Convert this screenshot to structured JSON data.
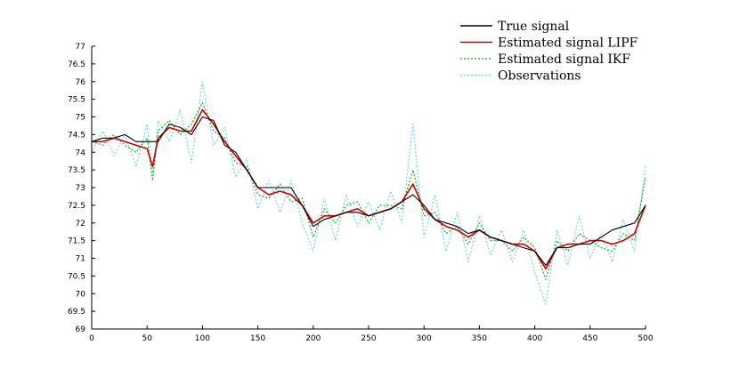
{
  "chart_data": {
    "type": "line",
    "xlim": [
      0,
      500
    ],
    "ylim": [
      69,
      77
    ],
    "x_ticks": [
      "0",
      "50",
      "100",
      "150",
      "200",
      "250",
      "300",
      "350",
      "400",
      "450",
      "500"
    ],
    "y_ticks": [
      "69",
      "69.5",
      "70",
      "70.5",
      "71",
      "71.5",
      "72",
      "72.5",
      "73",
      "73.5",
      "74",
      "74.5",
      "75",
      "75.5",
      "76",
      "76.5",
      "77"
    ],
    "grid": false,
    "legend_position": "top-right",
    "series": [
      {
        "name": "True signal",
        "color": "#000000",
        "style": "solid",
        "x": [
          0,
          10,
          20,
          30,
          40,
          50,
          55,
          60,
          70,
          80,
          90,
          100,
          110,
          120,
          130,
          140,
          150,
          160,
          170,
          180,
          190,
          200,
          210,
          220,
          230,
          240,
          250,
          260,
          270,
          280,
          290,
          300,
          310,
          320,
          330,
          340,
          350,
          360,
          370,
          380,
          390,
          400,
          410,
          420,
          430,
          440,
          450,
          460,
          470,
          480,
          490,
          500
        ],
        "y": [
          74.3,
          74.4,
          74.4,
          74.5,
          74.3,
          74.3,
          74.3,
          74.3,
          74.8,
          74.7,
          74.5,
          75.0,
          74.9,
          74.2,
          74.0,
          73.5,
          73.0,
          73.0,
          73.0,
          73.0,
          72.5,
          71.9,
          72.1,
          72.2,
          72.3,
          72.3,
          72.2,
          72.3,
          72.4,
          72.6,
          72.8,
          72.5,
          72.1,
          72.0,
          71.9,
          71.7,
          71.8,
          71.6,
          71.5,
          71.4,
          71.3,
          71.2,
          70.8,
          71.3,
          71.3,
          71.4,
          71.4,
          71.6,
          71.8,
          71.9,
          72.0,
          72.5
        ]
      },
      {
        "name": "Estimated signal LIPF",
        "color": "#cc0000",
        "style": "solid",
        "x": [
          0,
          10,
          20,
          30,
          40,
          50,
          55,
          60,
          70,
          80,
          90,
          100,
          110,
          120,
          130,
          140,
          150,
          160,
          170,
          180,
          190,
          200,
          210,
          220,
          230,
          240,
          250,
          260,
          270,
          280,
          290,
          300,
          310,
          320,
          330,
          340,
          350,
          360,
          370,
          380,
          390,
          400,
          410,
          420,
          430,
          440,
          450,
          460,
          470,
          480,
          490,
          500
        ],
        "y": [
          74.3,
          74.3,
          74.4,
          74.3,
          74.2,
          74.1,
          73.6,
          74.4,
          74.7,
          74.6,
          74.6,
          75.2,
          74.8,
          74.3,
          73.9,
          73.5,
          73.0,
          72.8,
          72.9,
          72.8,
          72.5,
          72.0,
          72.2,
          72.2,
          72.3,
          72.4,
          72.2,
          72.3,
          72.4,
          72.6,
          73.1,
          72.4,
          72.1,
          71.9,
          71.8,
          71.6,
          71.8,
          71.6,
          71.5,
          71.4,
          71.4,
          71.2,
          70.7,
          71.3,
          71.4,
          71.4,
          71.5,
          71.5,
          71.4,
          71.5,
          71.7,
          72.5
        ]
      },
      {
        "name": "Estimated signal IKF",
        "color": "#00aa00",
        "style": "dotted",
        "x": [
          0,
          10,
          20,
          30,
          40,
          50,
          55,
          60,
          70,
          80,
          90,
          100,
          110,
          120,
          130,
          140,
          150,
          160,
          170,
          180,
          190,
          200,
          210,
          220,
          230,
          240,
          250,
          260,
          270,
          280,
          290,
          300,
          310,
          320,
          330,
          340,
          350,
          360,
          370,
          380,
          390,
          400,
          410,
          420,
          430,
          440,
          450,
          460,
          470,
          480,
          490,
          500
        ],
        "y": [
          74.3,
          74.2,
          74.5,
          74.2,
          74.0,
          74.4,
          73.2,
          74.6,
          74.9,
          74.5,
          74.8,
          75.4,
          74.6,
          74.4,
          73.7,
          73.6,
          72.8,
          72.7,
          73.1,
          72.6,
          72.7,
          71.6,
          72.4,
          72.0,
          72.5,
          72.6,
          72.0,
          72.5,
          72.5,
          72.4,
          73.5,
          72.2,
          72.3,
          71.7,
          71.9,
          71.4,
          72.0,
          71.5,
          71.5,
          71.2,
          71.6,
          71.3,
          70.4,
          71.5,
          71.2,
          71.7,
          71.5,
          71.3,
          71.2,
          71.7,
          71.5,
          73.3
        ]
      },
      {
        "name": "Observations",
        "color": "#66ccee",
        "style": "dotted",
        "x": [
          0,
          10,
          20,
          30,
          40,
          50,
          55,
          60,
          70,
          80,
          90,
          100,
          110,
          120,
          130,
          140,
          150,
          160,
          170,
          180,
          190,
          200,
          210,
          220,
          230,
          240,
          250,
          260,
          270,
          280,
          290,
          300,
          310,
          320,
          330,
          340,
          350,
          360,
          370,
          380,
          390,
          400,
          410,
          420,
          430,
          440,
          450,
          460,
          470,
          480,
          490,
          500
        ],
        "y": [
          74.0,
          74.6,
          73.9,
          74.5,
          73.6,
          74.8,
          73.4,
          74.9,
          74.3,
          75.2,
          73.7,
          76.0,
          74.2,
          74.7,
          73.3,
          73.8,
          72.4,
          73.2,
          72.3,
          73.2,
          72.0,
          71.2,
          72.7,
          71.5,
          72.8,
          71.9,
          72.6,
          71.8,
          72.9,
          72.0,
          74.8,
          71.6,
          72.8,
          71.2,
          72.3,
          70.9,
          72.2,
          71.1,
          71.8,
          70.9,
          71.8,
          70.6,
          69.7,
          71.8,
          70.8,
          72.2,
          71.0,
          71.7,
          70.9,
          72.1,
          71.2,
          73.6
        ]
      }
    ]
  }
}
